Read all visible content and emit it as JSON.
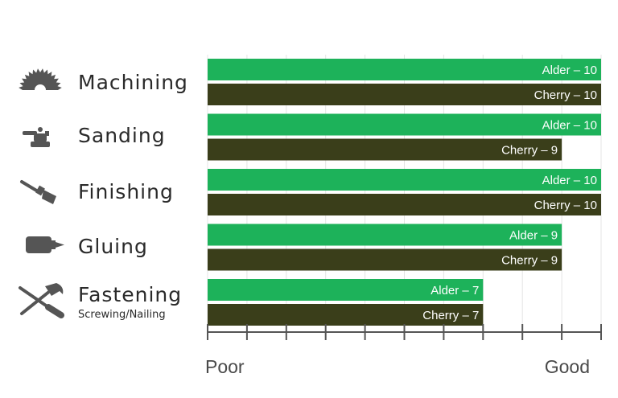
{
  "chart_data": {
    "type": "bar",
    "orientation": "horizontal",
    "categories": [
      "Machining",
      "Sanding",
      "Finishing",
      "Gluing",
      "Fastening"
    ],
    "category_subtitles": [
      "",
      "",
      "",
      "",
      "Screwing/Nailing"
    ],
    "category_icons": [
      "saw-blade-icon",
      "orbital-sander-icon",
      "paint-brush-icon",
      "glue-bottle-icon",
      "screwdriver-hammer-icon"
    ],
    "series": [
      {
        "name": "Alder",
        "color": "#1db25a",
        "values": [
          10,
          10,
          10,
          9,
          7
        ],
        "data_labels": [
          "Alder – 10",
          "Alder – 10",
          "Alder – 10",
          "Alder – 9",
          "Alder – 7"
        ]
      },
      {
        "name": "Cherry",
        "color": "#3a3e1a",
        "values": [
          10,
          9,
          10,
          9,
          7
        ],
        "data_labels": [
          "Cherry – 10",
          "Cherry – 9",
          "Cherry – 10",
          "Cherry – 9",
          "Cherry – 7"
        ]
      }
    ],
    "xlim": [
      0,
      10
    ],
    "x_ticks": [
      0,
      1,
      2,
      3,
      4,
      5,
      6,
      7,
      8,
      9,
      10
    ],
    "axis_end_labels": {
      "low": "Poor",
      "high": "Good"
    },
    "grid": true
  }
}
